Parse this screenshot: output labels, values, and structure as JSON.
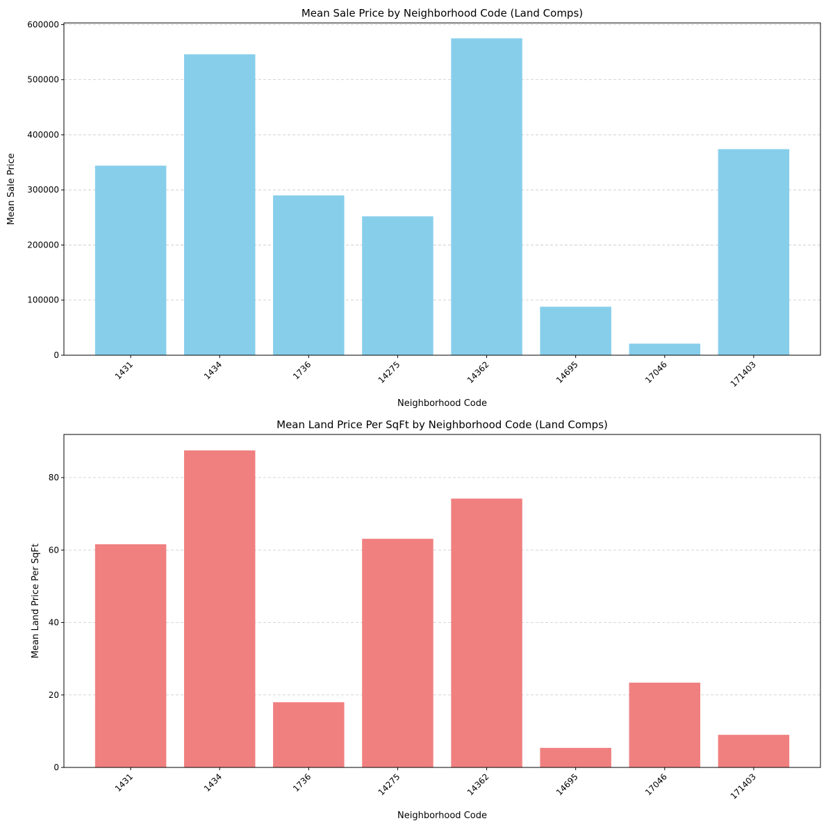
{
  "chart_data": [
    {
      "type": "bar",
      "title": "Mean Sale Price by Neighborhood Code (Land Comps)",
      "xlabel": "Neighborhood Code",
      "ylabel": "Mean Sale Price",
      "categories": [
        "1431",
        "1434",
        "1736",
        "14275",
        "14362",
        "14695",
        "17046",
        "171403"
      ],
      "values": [
        344000,
        546000,
        290000,
        252000,
        575000,
        88000,
        21000,
        374000
      ],
      "ylim": [
        0,
        603000
      ],
      "yticks": [
        0,
        100000,
        200000,
        300000,
        400000,
        500000,
        600000
      ],
      "color": "#87ceeb",
      "grid": "y-dashed",
      "x_tick_rotation": 45
    },
    {
      "type": "bar",
      "title": "Mean Land Price Per SqFt by Neighborhood Code (Land Comps)",
      "xlabel": "Neighborhood Code",
      "ylabel": "Mean Land Price Per SqFt",
      "categories": [
        "1431",
        "1434",
        "1736",
        "14275",
        "14362",
        "14695",
        "17046",
        "171403"
      ],
      "values": [
        61.6,
        87.5,
        18.0,
        63.1,
        74.2,
        5.4,
        23.4,
        9.0
      ],
      "ylim": [
        0,
        91.9
      ],
      "yticks": [
        0,
        20,
        40,
        60,
        80
      ],
      "color": "#f08080",
      "grid": "y-dashed",
      "x_tick_rotation": 45
    }
  ]
}
